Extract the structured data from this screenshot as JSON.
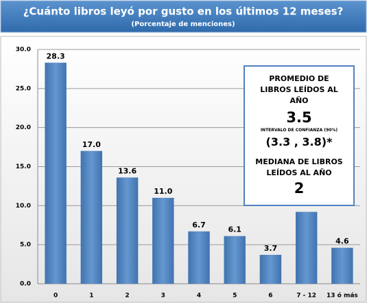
{
  "chart_data": {
    "type": "bar",
    "title": "¿Cuánto libros leyó por gusto en los últimos 12 meses?",
    "subtitle": "(Porcentaje de menciones)",
    "categories": [
      "0",
      "1",
      "2",
      "3",
      "4",
      "5",
      "6",
      "7 - 12",
      "13 ó más"
    ],
    "values": [
      28.3,
      17.0,
      13.6,
      11.0,
      6.7,
      6.1,
      3.7,
      9.2,
      4.6
    ],
    "value_labels": [
      "28.3",
      "17.0",
      "13.6",
      "11.0",
      "6.7",
      "6.1",
      "3.7",
      null,
      "4.6"
    ],
    "color": "#4f81bd",
    "ylim": [
      0,
      30
    ],
    "yticks": [
      {
        "value": 0,
        "label": "0.0"
      },
      {
        "value": 5,
        "label": "5.0"
      },
      {
        "value": 10,
        "label": "10.0"
      },
      {
        "value": 15,
        "label": "15.0"
      },
      {
        "value": 20,
        "label": "20.0"
      },
      {
        "value": 25,
        "label": "25.0"
      },
      {
        "value": 30,
        "label": "30.0"
      }
    ],
    "grid": true,
    "annotations": [
      "PROMEDIO DE LIBROS LEÍDOS AL AÑO",
      "3.5",
      "INTERVALO DE CONFIANZA (90%)",
      "(3.3 , 3.8)*",
      "MEDIANA DE LIBROS LEÍDOS AL AÑO",
      "2"
    ]
  }
}
